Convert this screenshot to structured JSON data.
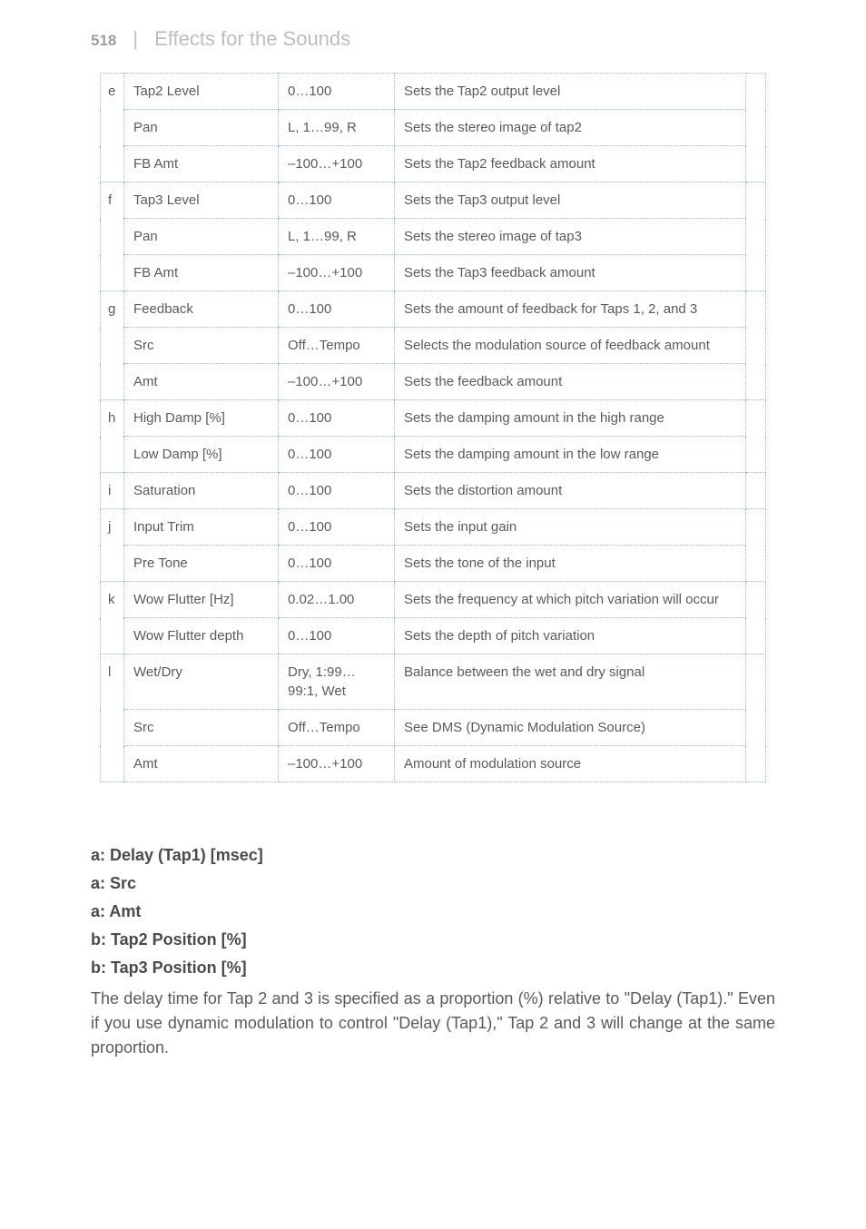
{
  "header": {
    "page": "518",
    "divider": "|",
    "title": "Effects for the Sounds"
  },
  "table": {
    "rows": [
      {
        "letter": "e",
        "param": "Tap2 Level",
        "range": "0…100",
        "desc": "Sets the Tap2 output level",
        "group_first": true,
        "group_last": false
      },
      {
        "letter": "",
        "param": "Pan",
        "range": "L, 1…99, R",
        "desc": "Sets the stereo image of tap2",
        "group_first": false,
        "group_last": false
      },
      {
        "letter": "",
        "param": "FB Amt",
        "range": "–100…+100",
        "desc": "Sets the Tap2 feedback amount",
        "group_first": false,
        "group_last": true
      },
      {
        "letter": "f",
        "param": "Tap3 Level",
        "range": "0…100",
        "desc": "Sets the Tap3 output level",
        "group_first": true,
        "group_last": false
      },
      {
        "letter": "",
        "param": "Pan",
        "range": "L, 1…99, R",
        "desc": "Sets the stereo image of tap3",
        "group_first": false,
        "group_last": false
      },
      {
        "letter": "",
        "param": "FB Amt",
        "range": "–100…+100",
        "desc": "Sets the Tap3 feedback amount",
        "group_first": false,
        "group_last": true
      },
      {
        "letter": "g",
        "param": "Feedback",
        "range": "0…100",
        "desc": "Sets the amount of feedback for Taps 1, 2, and 3",
        "group_first": true,
        "group_last": false
      },
      {
        "letter": "",
        "param": "Src",
        "range": "Off…Tempo",
        "desc": "Selects the modulation source of feedback amount",
        "group_first": false,
        "group_last": false
      },
      {
        "letter": "",
        "param": "Amt",
        "range": "–100…+100",
        "desc": "Sets the feedback amount",
        "group_first": false,
        "group_last": true
      },
      {
        "letter": "h",
        "param": "High Damp [%]",
        "range": "0…100",
        "desc": "Sets the damping amount in the high range",
        "group_first": true,
        "group_last": false
      },
      {
        "letter": "",
        "param": "Low Damp [%]",
        "range": "0…100",
        "desc": "Sets the damping amount in the low range",
        "group_first": false,
        "group_last": true
      },
      {
        "letter": "i",
        "param": "Saturation",
        "range": "0…100",
        "desc": "Sets the distortion amount",
        "group_first": true,
        "group_last": true
      },
      {
        "letter": "j",
        "param": "Input Trim",
        "range": "0…100",
        "desc": "Sets the input gain",
        "group_first": true,
        "group_last": false
      },
      {
        "letter": "",
        "param": "Pre Tone",
        "range": "0…100",
        "desc": "Sets the tone of the input",
        "group_first": false,
        "group_last": true
      },
      {
        "letter": "k",
        "param": "Wow Flutter [Hz]",
        "range": "0.02…1.00",
        "desc": "Sets the frequency at which pitch variation will occur",
        "group_first": true,
        "group_last": false
      },
      {
        "letter": "",
        "param": "Wow Flutter depth",
        "range": "0…100",
        "desc": "Sets the depth of pitch variation",
        "group_first": false,
        "group_last": true
      },
      {
        "letter": "l",
        "param": "Wet/Dry",
        "range": "Dry, 1:99…99:1, Wet",
        "desc": "Balance between the wet and dry signal",
        "group_first": true,
        "group_last": false
      },
      {
        "letter": "",
        "param": "Src",
        "range": "Off…Tempo",
        "desc": "See DMS (Dynamic Modulation Source)",
        "group_first": false,
        "group_last": false
      },
      {
        "letter": "",
        "param": "Amt",
        "range": "–100…+100",
        "desc": "Amount of modulation source",
        "group_first": false,
        "group_last": true
      }
    ]
  },
  "notes": {
    "lines": [
      "a: Delay (Tap1) [msec]",
      "a: Src",
      "a: Amt",
      "b: Tap2 Position [%]",
      "b: Tap3 Position [%]"
    ],
    "paragraph": "The delay time for Tap 2 and 3 is specified as a proportion (%) relative to \"Delay (Tap1).\" Even if you use dynamic modulation to control \"Delay (Tap1),\" Tap 2 and 3 will change at the same proportion."
  }
}
